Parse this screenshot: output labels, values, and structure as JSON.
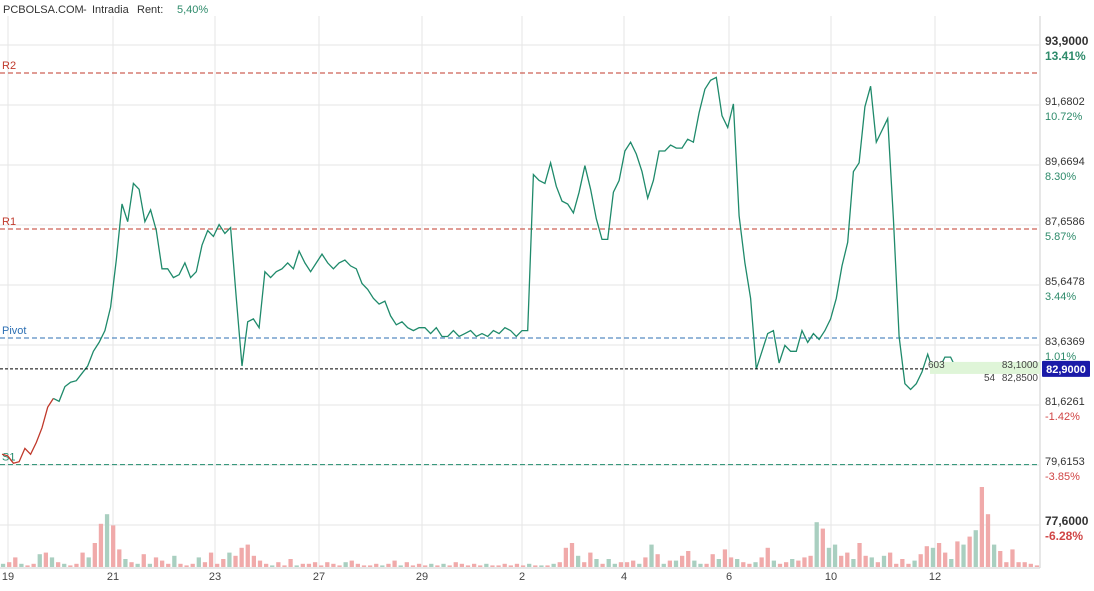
{
  "header": {
    "site": "PCBOLSA.COM",
    "separator": "-",
    "mode": "Intradia",
    "rent_label": "Rent:",
    "rent_value": "5,40%"
  },
  "colors": {
    "price_line": "#1f8a6b",
    "price_line_low": "#c0392b",
    "r_level": "#c0392b",
    "pivot_level": "#2c6fb3",
    "s_level": "#1f8a6b",
    "current_badge": "#1a1aa8",
    "vol_up": "#a9cfc0",
    "vol_down": "#f0aaaa",
    "grid": "#e6e6e6",
    "pct_pos": "#2e8b6b",
    "pct_neg": "#d04545"
  },
  "chart_data": {
    "type": "line",
    "x_ticks": [
      "19",
      "21",
      "23",
      "27",
      "29",
      "2",
      "4",
      "6",
      "10",
      "12"
    ],
    "ylim": [
      77.6,
      93.9
    ],
    "y_ticks": [
      {
        "price": "93,9000",
        "pct": "13.41%"
      },
      {
        "price": "91,6802",
        "pct": "10.72%"
      },
      {
        "price": "89,6694",
        "pct": "8.30%"
      },
      {
        "price": "87,6586",
        "pct": "5.87%"
      },
      {
        "price": "85,6478",
        "pct": "3.44%"
      },
      {
        "price": "83,6369",
        "pct": "1.01%"
      },
      {
        "price": "81,6261",
        "pct": "-1.42%"
      },
      {
        "price": "79,6153",
        "pct": "-3.85%"
      },
      {
        "price": "77,6000",
        "pct": "-6.28%"
      }
    ],
    "levels": [
      {
        "name": "R2",
        "value": 92.95,
        "kind": "r"
      },
      {
        "name": "R1",
        "value": 87.65,
        "kind": "r"
      },
      {
        "name": "Pivot",
        "value": 83.95,
        "kind": "pivot"
      },
      {
        "name": "S1",
        "value": 79.65,
        "kind": "s"
      }
    ],
    "current_price": {
      "value": 82.9,
      "label": "82,9000"
    },
    "book": {
      "ask": "83,1000",
      "bid": "82,8500",
      "ask_size": "603",
      "bid_size": "54"
    },
    "series": [
      {
        "values": [
          80.0,
          79.95,
          79.7,
          79.75,
          80.2,
          80.0,
          80.4,
          80.9,
          81.6,
          81.9,
          81.8,
          82.3,
          82.45,
          82.5,
          82.75,
          83.0,
          83.5,
          83.8,
          84.2,
          85.0,
          86.6,
          88.5,
          87.9,
          89.2,
          89.0,
          87.9,
          88.3,
          87.6,
          86.3,
          86.3,
          86.0,
          86.1,
          86.5,
          86.0,
          86.2,
          87.1,
          87.6,
          87.4,
          87.8,
          87.5,
          87.7,
          85.3,
          83.0,
          84.5,
          84.6,
          84.3,
          86.2,
          86.0,
          86.2,
          86.3,
          86.5,
          86.3,
          86.9,
          86.5,
          86.2,
          86.5,
          86.8,
          86.5,
          86.3,
          86.5,
          86.6,
          86.4,
          86.3,
          85.8,
          85.6,
          85.3,
          85.1,
          85.2,
          84.7,
          84.4,
          84.5,
          84.3,
          84.2,
          84.3,
          84.3,
          84.1,
          84.3,
          84.0,
          84.0,
          84.2,
          84.0,
          84.1,
          84.2,
          84.0,
          84.1,
          84.0,
          84.2,
          84.1,
          84.3,
          84.2,
          84.0,
          84.2,
          84.2,
          89.5,
          89.3,
          89.2,
          89.9,
          89.1,
          88.6,
          88.5,
          88.2,
          88.9,
          89.8,
          89.0,
          88.0,
          87.3,
          87.3,
          88.9,
          89.3,
          90.3,
          90.6,
          90.2,
          89.6,
          88.7,
          89.3,
          90.3,
          90.3,
          90.5,
          90.4,
          90.4,
          90.7,
          90.6,
          91.6,
          92.4,
          92.7,
          92.8,
          91.5,
          91.1,
          91.9,
          88.1,
          86.5,
          85.3,
          82.9,
          83.5,
          84.1,
          84.2,
          83.1,
          83.7,
          83.5,
          83.5,
          84.2,
          83.8,
          84.1,
          83.9,
          84.2,
          84.6,
          85.3,
          86.4,
          87.2,
          89.6,
          89.9,
          91.8,
          92.5,
          90.6,
          91.0,
          91.4,
          88.0,
          84.0,
          82.4,
          82.2,
          82.4,
          82.8,
          83.4,
          82.8,
          82.9,
          83.3,
          83.3,
          82.9,
          82.85
        ]
      }
    ],
    "volume": {
      "up_idx": [
        0,
        3,
        6,
        8,
        10,
        14,
        17,
        20,
        22,
        24,
        28,
        32,
        37,
        44,
        48,
        56,
        62,
        65,
        70,
        72,
        79,
        86,
        88,
        90,
        94,
        97,
        99,
        100,
        104,
        106,
        108,
        110,
        113,
        114,
        117,
        120,
        123,
        126,
        129,
        133,
        135,
        136,
        139,
        142,
        144,
        149,
        152,
        155,
        157,
        159,
        162
      ],
      "values": [
        2,
        3,
        6,
        2,
        1,
        2,
        8,
        9,
        6,
        3,
        2,
        1,
        2,
        9,
        6,
        15,
        27,
        33,
        26,
        11,
        5,
        3,
        2,
        8,
        2,
        6,
        4,
        2,
        7,
        2,
        1,
        2,
        6,
        3,
        9,
        2,
        5,
        9,
        7,
        12,
        14,
        7,
        4,
        2,
        1,
        3,
        1,
        5,
        1,
        2,
        2,
        3,
        1,
        3,
        2,
        1,
        3,
        4,
        2,
        1,
        1,
        2,
        1,
        2,
        4,
        1,
        3,
        1,
        2,
        1,
        2,
        1,
        2,
        1,
        3,
        2,
        1,
        2,
        1,
        2,
        1,
        1,
        2,
        1,
        2,
        1,
        2,
        1,
        1,
        1,
        2,
        3,
        12,
        15,
        7,
        3,
        9,
        5,
        2,
        5,
        2,
        3,
        3,
        4,
        2,
        6,
        14,
        8,
        2,
        4,
        4,
        7,
        10,
        4,
        2,
        2,
        8,
        5,
        11,
        6,
        5,
        3,
        2,
        3,
        6,
        12,
        4,
        2,
        3,
        5,
        4,
        6,
        7,
        28,
        24,
        12,
        14,
        7,
        9,
        5,
        15,
        7,
        6,
        3,
        7,
        9,
        2,
        5,
        2,
        4,
        8,
        13,
        12,
        15,
        9,
        5,
        16,
        14,
        19,
        23,
        50,
        33,
        14,
        10,
        3,
        11,
        3,
        3,
        2,
        1
      ]
    }
  }
}
